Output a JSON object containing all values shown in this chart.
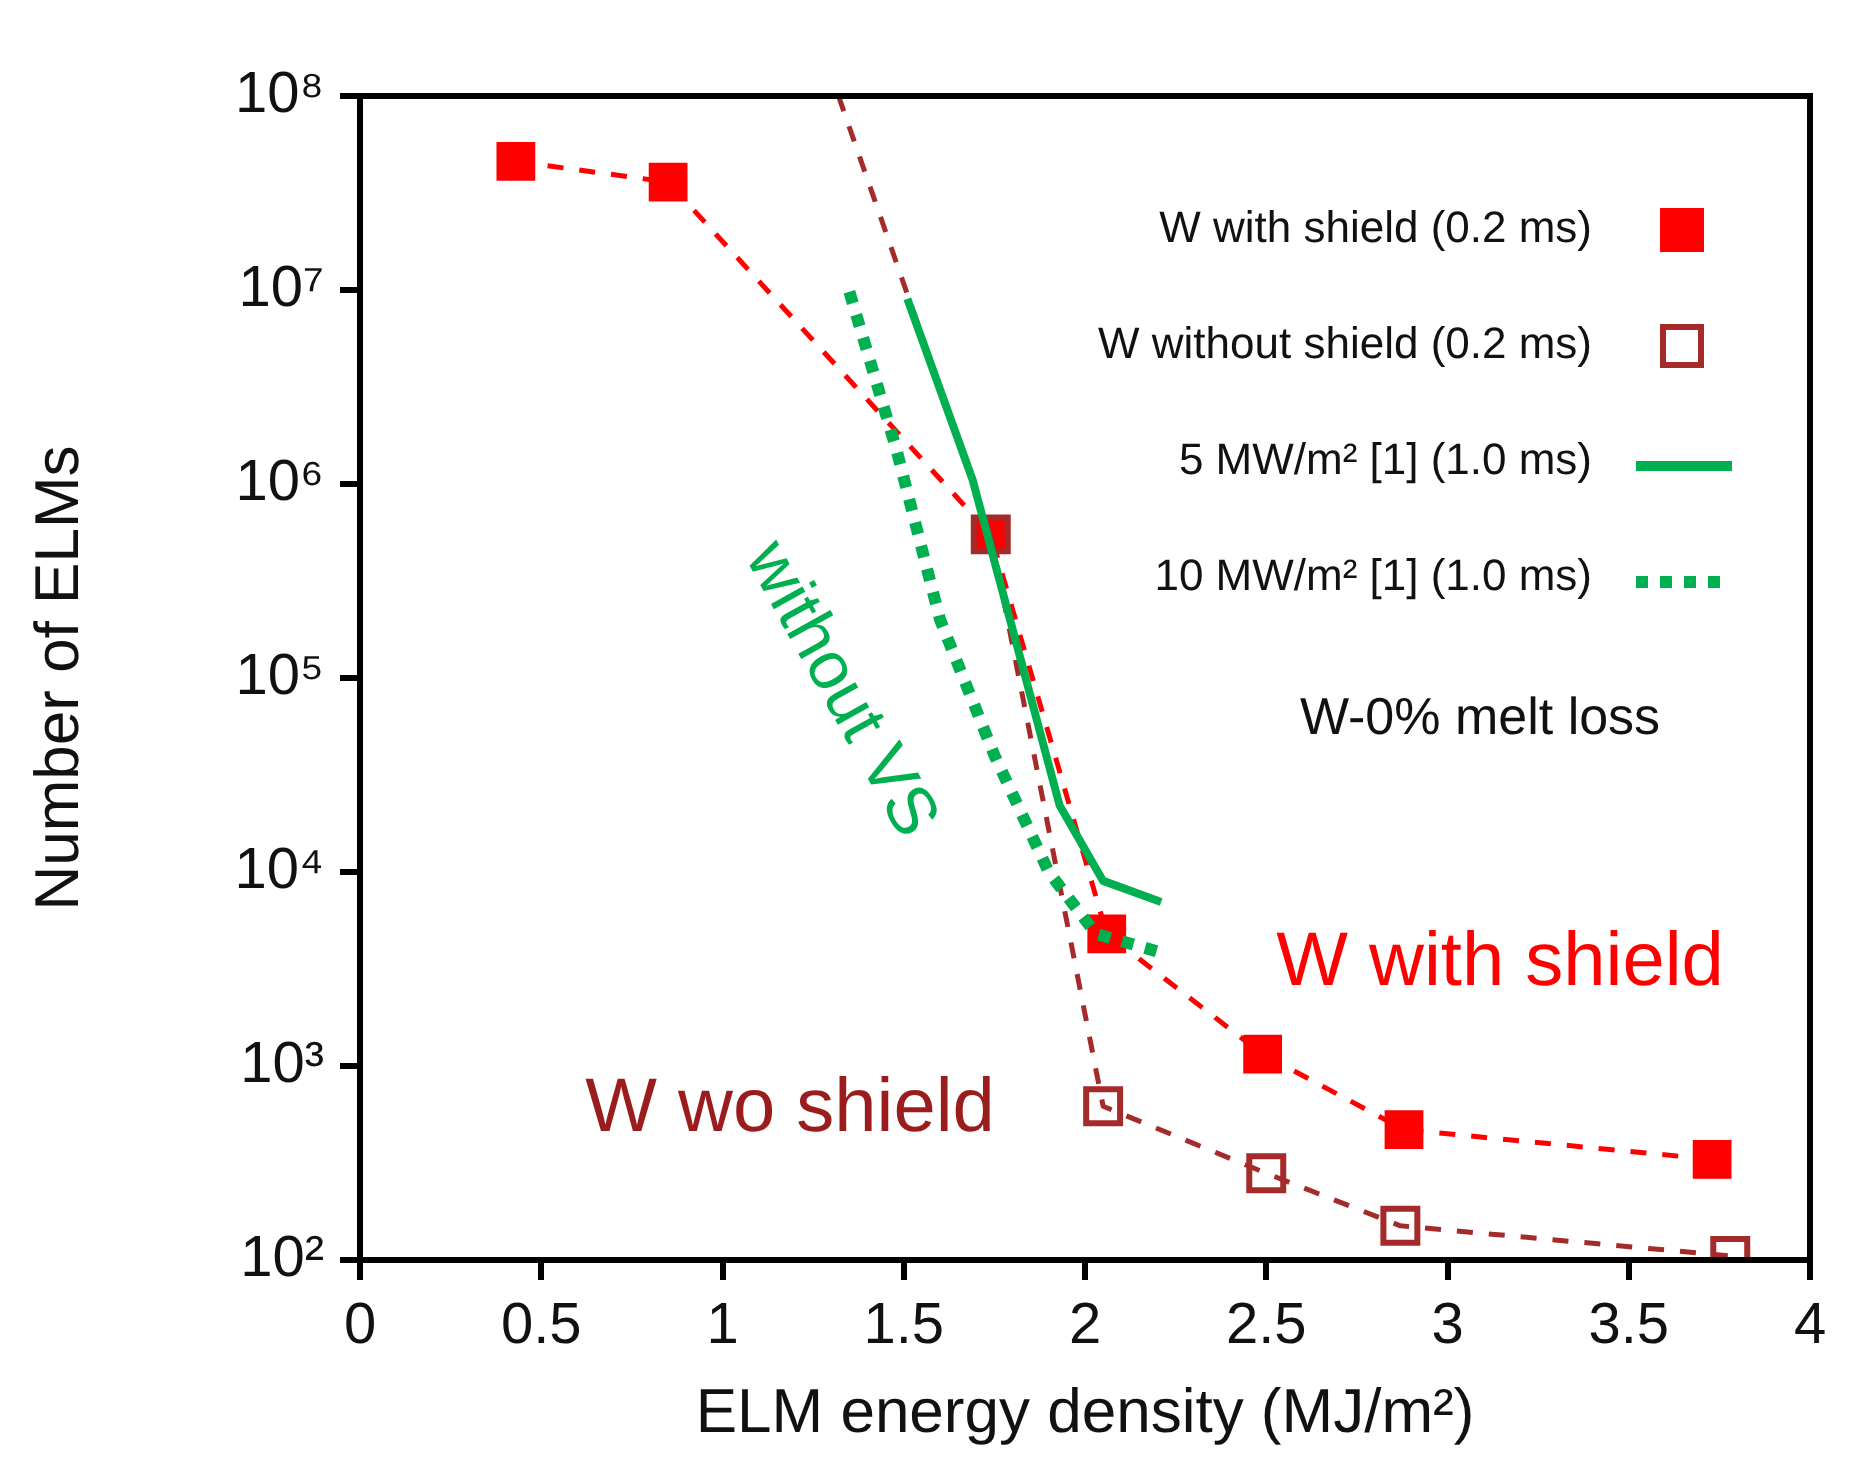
{
  "chart_data": {
    "type": "line",
    "xlabel": "ELM energy density (MJ/m²)",
    "ylabel": "Number of ELMs",
    "log": "y",
    "legend": "top right",
    "xlim": [
      0,
      4
    ],
    "xticks": [
      0,
      0.5,
      1,
      1.5,
      2,
      2.5,
      3,
      3.5,
      4
    ],
    "ylim": [
      100,
      100000000
    ],
    "yticks": [
      {
        "value": 100,
        "label": "10²"
      },
      {
        "value": 1000,
        "label": "10³"
      },
      {
        "value": 10000,
        "label": "10⁴"
      },
      {
        "value": 100000,
        "label": "10⁵"
      },
      {
        "value": 1000000,
        "label": "10⁶"
      },
      {
        "value": 10000000,
        "label": "10⁷"
      },
      {
        "value": 100000000,
        "label": "10⁸"
      }
    ],
    "series": [
      {
        "name": "W with shield (0.2 ms)",
        "type": "line",
        "color": "#ff0000",
        "marker": "square",
        "line_style": "dashed",
        "x": [
          0.43,
          0.85,
          1.74,
          2.06,
          2.49,
          2.88,
          3.73
        ],
        "values": [
          46000000,
          36000000,
          550000,
          4800,
          1150,
          470,
          330
        ]
      },
      {
        "name": "W without shield (0.2 ms)",
        "type": "line",
        "color": "#a52a2a",
        "marker": "square",
        "line_style": "dashed",
        "x": [
          1.74,
          2.05,
          2.5,
          2.87,
          3.78
        ],
        "values": [
          550000,
          620,
          280,
          150,
          105
        ]
      },
      {
        "type": "line",
        "color": "#a52a2a",
        "marker": "none",
        "line_style": "dashed",
        "x": [
          1.32,
          1.74
        ],
        "values": [
          100000000,
          550000
        ]
      },
      {
        "name": "5 MW/m² [1] (1.0 ms)",
        "type": "line",
        "color": "#00b050",
        "marker": "none",
        "line_style": "solid",
        "x": [
          1.51,
          1.69,
          1.82,
          1.93,
          2.05,
          2.21
        ],
        "values": [
          9000000,
          1050000,
          130000,
          22000,
          9000,
          7000
        ]
      },
      {
        "name": "10 MW/m² [1] (1.0 ms)",
        "type": "line",
        "color": "#00b050",
        "marker": "none",
        "line_style": "dotted",
        "x": [
          1.35,
          1.48,
          1.6,
          1.75,
          1.9,
          2.03,
          2.22
        ],
        "values": [
          9800000,
          1500000,
          200000,
          40000,
          10000,
          4800,
          3800
        ]
      }
    ],
    "annotations": [
      "without VS",
      "W-0% melt loss",
      "W with shield",
      "W wo shield"
    ]
  }
}
